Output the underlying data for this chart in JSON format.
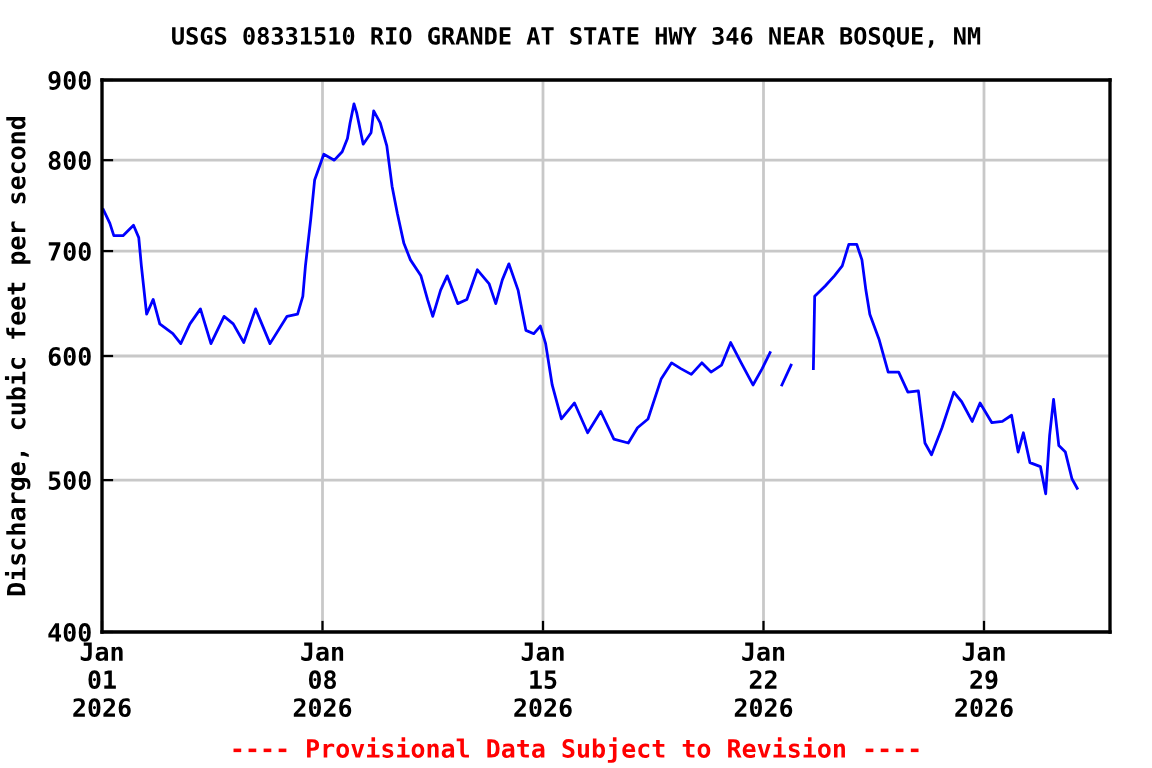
{
  "chart_data": {
    "type": "line",
    "title": "USGS 08331510 RIO GRANDE AT STATE HWY 346 NEAR BOSQUE, NM",
    "ylabel": "Discharge, cubic feet per second",
    "annotations": [
      "---- Provisional Data Subject to Revision ----"
    ],
    "log": true,
    "grid": true,
    "xlim": [
      "2026-01-01",
      "2026-02-02"
    ],
    "xticks": [
      {
        "value": "2026-01-01",
        "label": "Jan\n01\n2026"
      },
      {
        "value": "2026-01-08",
        "label": "Jan\n08\n2026"
      },
      {
        "value": "2026-01-15",
        "label": "Jan\n15\n2026"
      },
      {
        "value": "2026-01-22",
        "label": "Jan\n22\n2026"
      },
      {
        "value": "2026-01-29",
        "label": "Jan\n29\n2026"
      }
    ],
    "ylim": [
      400,
      900
    ],
    "yticks": [
      400,
      500,
      600,
      700,
      800,
      900
    ],
    "x": [
      "2026-01-01T01:00",
      "2026-01-01T06:00",
      "2026-01-01T09:00",
      "2026-01-01T16:00",
      "2026-01-02T00:00",
      "2026-01-02T04:00",
      "2026-01-02T06:00",
      "2026-01-02T10:00",
      "2026-01-02T15:00",
      "2026-01-02T20:00",
      "2026-01-03T06:00",
      "2026-01-03T12:00",
      "2026-01-03T19:00",
      "2026-01-04T03:00",
      "2026-01-04T11:00",
      "2026-01-04T21:00",
      "2026-01-05T04:00",
      "2026-01-05T12:00",
      "2026-01-05T21:00",
      "2026-01-06T08:00",
      "2026-01-06T21:00",
      "2026-01-07T05:00",
      "2026-01-07T09:00",
      "2026-01-07T11:00",
      "2026-01-07T15:00",
      "2026-01-07T18:00",
      "2026-01-08T01:00",
      "2026-01-08T09:00",
      "2026-01-08T15:00",
      "2026-01-08T19:00",
      "2026-01-08T21:00",
      "2026-01-09T00:00",
      "2026-01-09T02:00",
      "2026-01-09T07:00",
      "2026-01-09T13:00",
      "2026-01-09T15:00",
      "2026-01-09T20:00",
      "2026-01-10T01:00",
      "2026-01-10T05:00",
      "2026-01-10T09:00",
      "2026-01-10T14:00",
      "2026-01-10T19:00",
      "2026-01-11T03:00",
      "2026-01-11T08:00",
      "2026-01-11T12:00",
      "2026-01-11T18:00",
      "2026-01-11T23:00",
      "2026-01-12T07:00",
      "2026-01-12T14:00",
      "2026-01-12T22:00",
      "2026-01-13T07:00",
      "2026-01-13T12:00",
      "2026-01-13T17:00",
      "2026-01-13T22:00",
      "2026-01-14T05:00",
      "2026-01-14T11:00",
      "2026-01-14T17:00",
      "2026-01-14T22:00",
      "2026-01-15T02:00",
      "2026-01-15T07:00",
      "2026-01-15T14:00",
      "2026-01-16T00:00",
      "2026-01-16T10:00",
      "2026-01-16T20:00",
      "2026-01-17T06:00",
      "2026-01-17T17:00",
      "2026-01-18T00:00",
      "2026-01-18T08:00",
      "2026-01-18T18:00",
      "2026-01-19T02:00",
      "2026-01-19T09:00",
      "2026-01-19T17:00",
      "2026-01-20T01:00",
      "2026-01-20T08:00",
      "2026-01-20T16:00",
      "2026-01-20T23:00",
      "2026-01-21T07:00",
      "2026-01-21T16:00",
      "2026-01-21T23:00",
      "2026-01-22T05:00",
      "2026-01-22T08:00",
      "2026-01-22T14:00",
      "2026-01-22T21:00",
      "2026-01-23T03:00",
      "2026-01-23T14:00",
      "2026-01-23T15:00",
      "2026-01-23T23:00",
      "2026-01-24T06:00",
      "2026-01-24T12:00",
      "2026-01-24T17:00",
      "2026-01-24T23:00",
      "2026-01-25T03:00",
      "2026-01-25T06:00",
      "2026-01-25T09:00",
      "2026-01-25T16:00",
      "2026-01-25T23:00",
      "2026-01-26T07:00",
      "2026-01-26T14:00",
      "2026-01-26T22:00",
      "2026-01-27T03:00",
      "2026-01-27T08:00",
      "2026-01-27T16:00",
      "2026-01-28T01:00",
      "2026-01-28T07:00",
      "2026-01-28T15:00",
      "2026-01-28T21:00",
      "2026-01-29T06:00",
      "2026-01-29T14:00",
      "2026-01-29T21:00",
      "2026-01-30T02:00",
      "2026-01-30T06:00",
      "2026-01-30T11:00",
      "2026-01-30T19:00",
      "2026-01-30T23:00",
      "2026-01-31T02:00",
      "2026-01-31T05:00",
      "2026-01-31T09:00",
      "2026-01-31T14:00",
      "2026-01-31T19:00",
      "2026-01-31T23:00"
    ],
    "series": [
      {
        "color": "#0000ff",
        "values": [
          744,
          729,
          716,
          716,
          727,
          714,
          685,
          638,
          652,
          629,
          620,
          611,
          629,
          643,
          611,
          636,
          629,
          612,
          643,
          611,
          636,
          638,
          655,
          685,
          733,
          777,
          807,
          800,
          810,
          826,
          845,
          869,
          858,
          819,
          833,
          860,
          845,
          817,
          770,
          740,
          708,
          691,
          675,
          652,
          636,
          661,
          675,
          648,
          652,
          681,
          667,
          648,
          671,
          687,
          661,
          623,
          620,
          627,
          611,
          575,
          547,
          560,
          536,
          553,
          531,
          528,
          540,
          547,
          580,
          594,
          589,
          584,
          594,
          586,
          592,
          612,
          594,
          575,
          589,
          603,
          null,
          575,
          592,
          null,
          589,
          655,
          665,
          675,
          685,
          707,
          707,
          691,
          661,
          638,
          615,
          586,
          586,
          569,
          570,
          528,
          519,
          540,
          569,
          561,
          545,
          560,
          544,
          545,
          550,
          521,
          536,
          513,
          510,
          490,
          534,
          563,
          526,
          521,
          501,
          494
        ]
      }
    ]
  }
}
